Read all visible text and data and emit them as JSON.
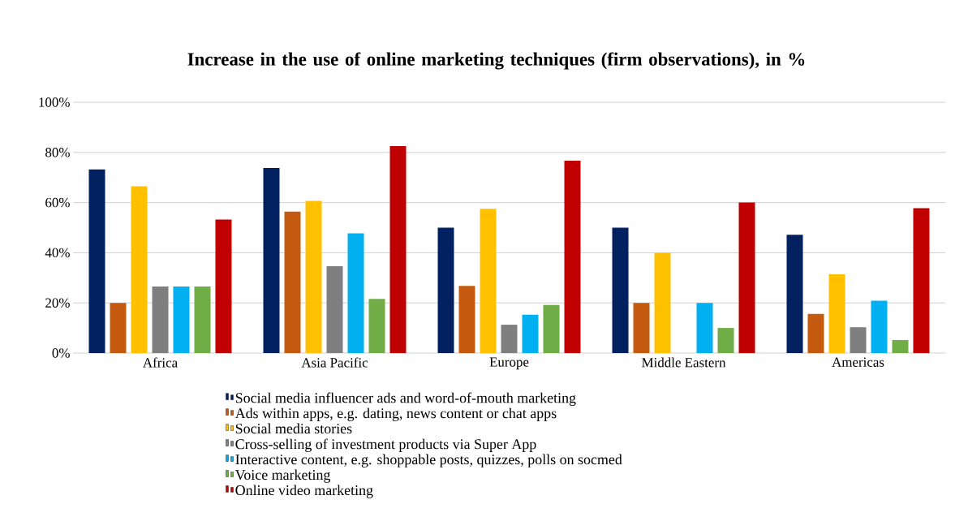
{
  "chart_data": {
    "type": "bar",
    "title": "Increase in the use of online marketing techniques (firm observations), in %",
    "categories": [
      "Africa",
      "Asia Pacific",
      "Europe",
      "Middle Eastern",
      "Americas"
    ],
    "series": [
      {
        "name": "Social media influencer ads and word-of-mouth marketing",
        "color": "#002060",
        "values": [
          73.2,
          73.8,
          50,
          50,
          47.2
        ]
      },
      {
        "name": "Ads within apps, e.g. dating, news content or chat apps",
        "color": "#c55a11",
        "values": [
          20,
          56.4,
          26.8,
          20,
          15.6
        ]
      },
      {
        "name": "Social media stories",
        "color": "#ffc000",
        "values": [
          66.5,
          60.7,
          57.5,
          40,
          31.4
        ]
      },
      {
        "name": "Cross-selling of investment products via Super App",
        "color": "#7f7f7f",
        "values": [
          26.5,
          34.6,
          11.3,
          null,
          10.3
        ]
      },
      {
        "name": "Interactive content, e.g. shoppable posts, quizzes, polls on socmed",
        "color": "#00b0f0",
        "values": [
          26.5,
          47.7,
          15.3,
          20,
          20.9
        ]
      },
      {
        "name": "Voice marketing",
        "color": "#70ad47",
        "values": [
          26.5,
          21.6,
          19.2,
          10,
          5.2
        ]
      },
      {
        "name": "Online video marketing",
        "color": "#c00000",
        "values": [
          53.2,
          82.5,
          76.7,
          60,
          57.8
        ]
      }
    ],
    "ylim": [
      0,
      100
    ],
    "yticks": [
      {
        "value": 0,
        "label": "0%"
      },
      {
        "value": 20,
        "label": "20%"
      },
      {
        "value": 40,
        "label": "40%"
      },
      {
        "value": 60,
        "label": "60%"
      },
      {
        "value": 80,
        "label": "80%"
      },
      {
        "value": 100,
        "label": "100%"
      }
    ],
    "grid": "y",
    "legend": "bottom"
  }
}
